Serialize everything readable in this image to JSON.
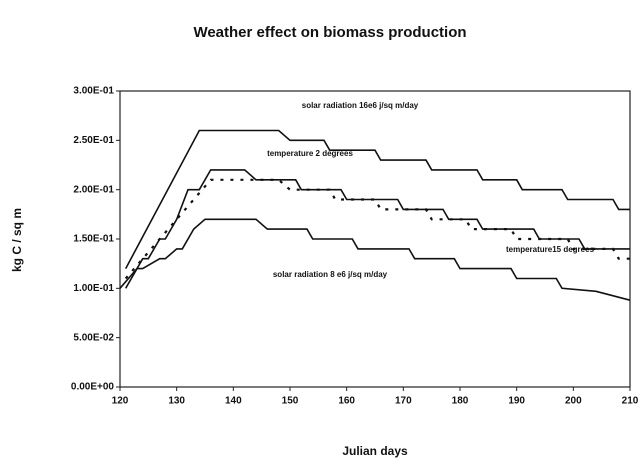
{
  "chart_data": {
    "type": "line",
    "title": "Weather effect on biomass production",
    "xlabel": "Julian days",
    "ylabel": "kg C / sq m",
    "xlim": [
      120,
      210
    ],
    "xticks": [
      120,
      130,
      140,
      150,
      160,
      170,
      180,
      190,
      200,
      210
    ],
    "ylim": [
      0,
      0.3
    ],
    "yticks": [
      {
        "value": 0,
        "label": "0.00E+00"
      },
      {
        "value": 0.05,
        "label": "5.00E-02"
      },
      {
        "value": 0.1,
        "label": "1.00E-01"
      },
      {
        "value": 0.15,
        "label": "1.50E-01"
      },
      {
        "value": 0.2,
        "label": "2.00E-01"
      },
      {
        "value": 0.25,
        "label": "2.50E-01"
      },
      {
        "value": 0.3,
        "label": "3.00E-01"
      }
    ],
    "grid": false,
    "series": [
      {
        "name": "solar radiation 16e6 j/sq m/day",
        "color": "#111111",
        "style": "solid",
        "x": [
          121,
          134,
          148,
          150,
          156,
          157,
          165,
          166,
          174,
          175,
          183,
          184,
          190,
          191,
          198,
          199,
          207,
          208,
          210
        ],
        "values": [
          0.12,
          0.26,
          0.26,
          0.25,
          0.25,
          0.24,
          0.24,
          0.23,
          0.23,
          0.22,
          0.22,
          0.21,
          0.21,
          0.2,
          0.2,
          0.19,
          0.19,
          0.18,
          0.18
        ]
      },
      {
        "name": "temperature 2 degrees",
        "color": "#111111",
        "style": "solid",
        "x": [
          121,
          124,
          125,
          127,
          128,
          130,
          132,
          134,
          136,
          142,
          144,
          151,
          152,
          159,
          160,
          169,
          170,
          177,
          178,
          183,
          184,
          193,
          194,
          201,
          202,
          210
        ],
        "values": [
          0.1,
          0.13,
          0.13,
          0.15,
          0.15,
          0.17,
          0.2,
          0.2,
          0.22,
          0.22,
          0.21,
          0.21,
          0.2,
          0.2,
          0.19,
          0.19,
          0.18,
          0.18,
          0.17,
          0.17,
          0.16,
          0.16,
          0.15,
          0.15,
          0.14,
          0.14
        ]
      },
      {
        "name": "temperature15 degrees",
        "color": "#111111",
        "style": "dotted",
        "x": [
          121,
          136,
          148,
          150,
          157,
          158,
          165,
          166,
          174,
          175,
          181,
          182,
          189,
          190,
          199,
          200,
          207,
          208,
          210
        ],
        "values": [
          0.11,
          0.21,
          0.21,
          0.2,
          0.2,
          0.19,
          0.19,
          0.18,
          0.18,
          0.17,
          0.17,
          0.16,
          0.16,
          0.15,
          0.15,
          0.14,
          0.14,
          0.13,
          0.13
        ]
      },
      {
        "name": "solar radiation 8 e6 j/sq m/day",
        "color": "#111111",
        "style": "solid",
        "x": [
          120,
          123,
          124,
          127,
          128,
          130,
          131,
          133,
          135,
          144,
          146,
          153,
          154,
          161,
          162,
          171,
          172,
          179,
          180,
          189,
          190,
          197,
          198,
          204,
          210
        ],
        "values": [
          0.1,
          0.12,
          0.12,
          0.13,
          0.13,
          0.14,
          0.14,
          0.16,
          0.17,
          0.17,
          0.16,
          0.16,
          0.15,
          0.15,
          0.14,
          0.14,
          0.13,
          0.13,
          0.12,
          0.12,
          0.11,
          0.11,
          0.1,
          0.097,
          0.088
        ]
      }
    ]
  }
}
